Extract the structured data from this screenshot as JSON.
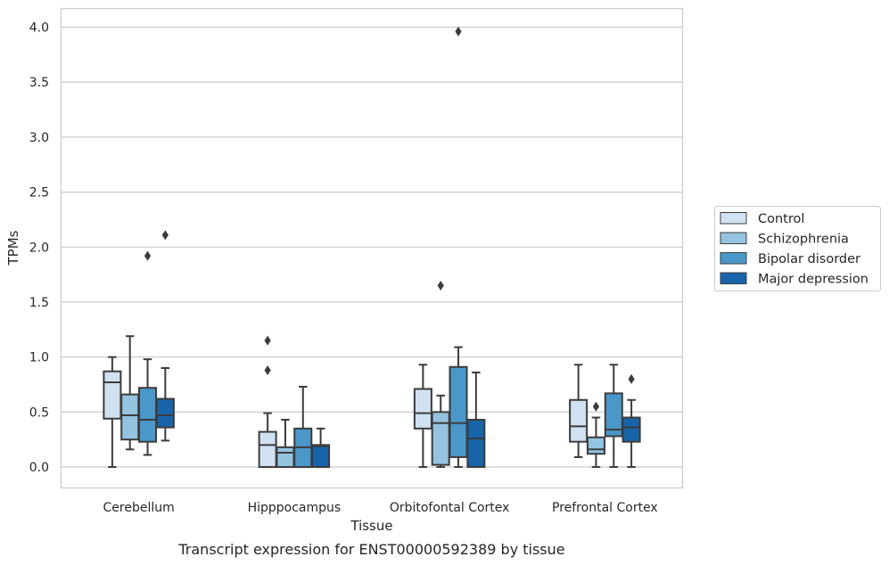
{
  "chart_data": {
    "type": "box",
    "xlabel": "Tissue",
    "ylabel": "TPMs",
    "caption": "Transcript expression for ENST00000592389 by tissue",
    "ylim": [
      -0.19,
      4.17
    ],
    "yticks": [
      "0.0",
      "0.5",
      "1.0",
      "1.5",
      "2.0",
      "2.5",
      "3.0",
      "3.5",
      "4.0"
    ],
    "grid": "horizontal",
    "legend_position": "right",
    "categories": [
      "Cerebellum",
      "Hipppocampus",
      "Orbitofontal Cortex",
      "Prefrontal Cortex"
    ],
    "series": [
      {
        "name": "Control",
        "color": "#d0e1f2",
        "boxes": [
          {
            "whislo": 0.0,
            "q1": 0.44,
            "med": 0.77,
            "q3": 0.87,
            "whishi": 1.0,
            "fliers": []
          },
          {
            "whislo": 0.0,
            "q1": 0.0,
            "med": 0.2,
            "q3": 0.32,
            "whishi": 0.49,
            "fliers": [
              0.88,
              1.15
            ]
          },
          {
            "whislo": 0.0,
            "q1": 0.35,
            "med": 0.49,
            "q3": 0.71,
            "whishi": 0.93,
            "fliers": []
          },
          {
            "whislo": 0.09,
            "q1": 0.23,
            "med": 0.37,
            "q3": 0.61,
            "whishi": 0.93,
            "fliers": []
          }
        ]
      },
      {
        "name": "Schizophrenia",
        "color": "#94c4df",
        "boxes": [
          {
            "whislo": 0.16,
            "q1": 0.25,
            "med": 0.47,
            "q3": 0.66,
            "whishi": 1.19,
            "fliers": []
          },
          {
            "whislo": 0.0,
            "q1": 0.0,
            "med": 0.13,
            "q3": 0.18,
            "whishi": 0.43,
            "fliers": []
          },
          {
            "whislo": 0.0,
            "q1": 0.02,
            "med": 0.4,
            "q3": 0.5,
            "whishi": 0.65,
            "fliers": [
              1.65
            ]
          },
          {
            "whislo": 0.0,
            "q1": 0.12,
            "med": 0.16,
            "q3": 0.27,
            "whishi": 0.45,
            "fliers": [
              0.55
            ]
          }
        ]
      },
      {
        "name": "Bipolar disorder",
        "color": "#4a98c9",
        "boxes": [
          {
            "whislo": 0.11,
            "q1": 0.23,
            "med": 0.43,
            "q3": 0.72,
            "whishi": 0.98,
            "fliers": [
              1.92
            ]
          },
          {
            "whislo": 0.0,
            "q1": 0.0,
            "med": 0.18,
            "q3": 0.35,
            "whishi": 0.73,
            "fliers": []
          },
          {
            "whislo": 0.0,
            "q1": 0.09,
            "med": 0.4,
            "q3": 0.91,
            "whishi": 1.09,
            "fliers": [
              3.96
            ]
          },
          {
            "whislo": 0.0,
            "q1": 0.28,
            "med": 0.34,
            "q3": 0.67,
            "whishi": 0.93,
            "fliers": []
          }
        ]
      },
      {
        "name": "Major depression",
        "color": "#1764ab",
        "boxes": [
          {
            "whislo": 0.24,
            "q1": 0.36,
            "med": 0.47,
            "q3": 0.62,
            "whishi": 0.9,
            "fliers": [
              2.11
            ]
          },
          {
            "whislo": 0.0,
            "q1": 0.0,
            "med": 0.19,
            "q3": 0.2,
            "whishi": 0.35,
            "fliers": []
          },
          {
            "whislo": 0.0,
            "q1": 0.0,
            "med": 0.26,
            "q3": 0.43,
            "whishi": 0.86,
            "fliers": []
          },
          {
            "whislo": 0.0,
            "q1": 0.23,
            "med": 0.36,
            "q3": 0.45,
            "whishi": 0.61,
            "fliers": [
              0.8
            ]
          }
        ]
      }
    ]
  }
}
